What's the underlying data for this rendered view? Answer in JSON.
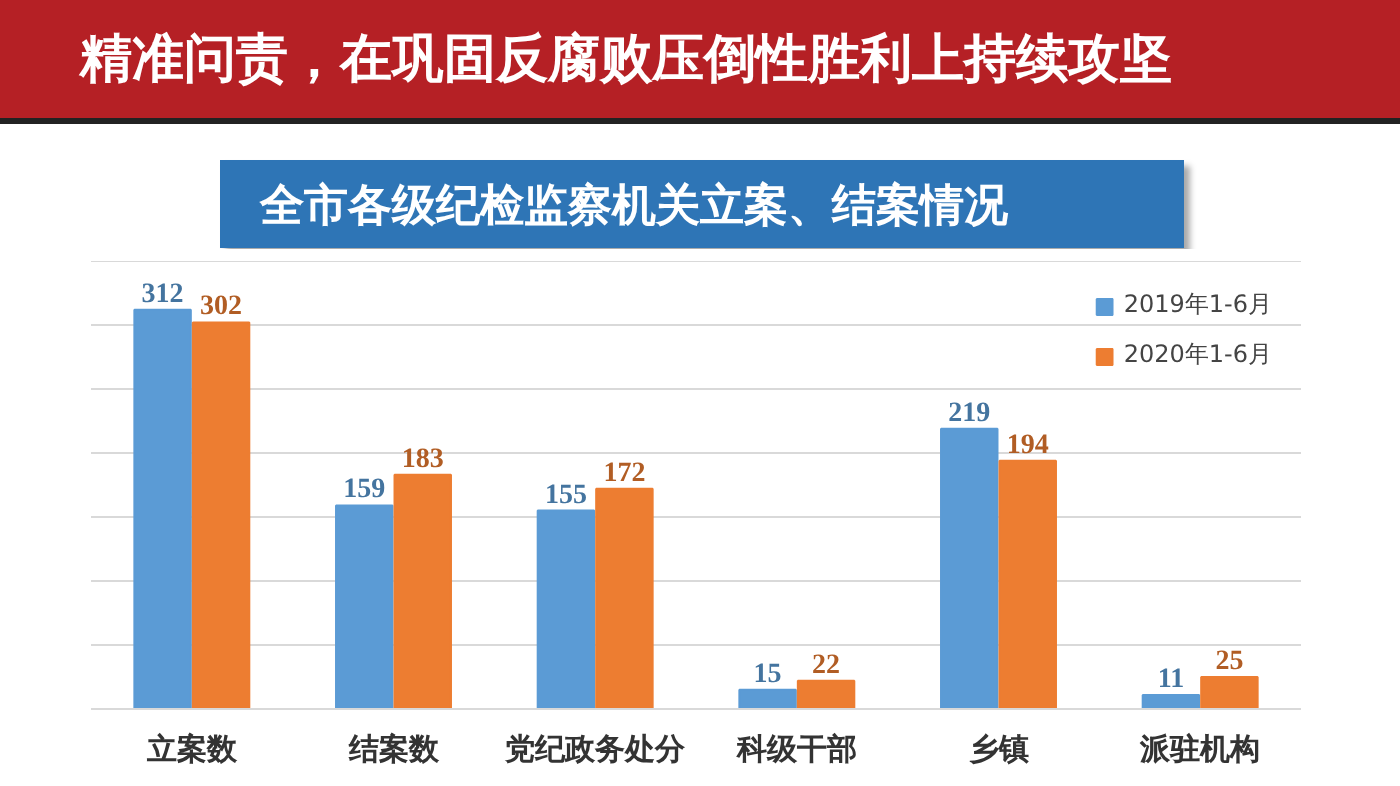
{
  "chart_data": {
    "type": "bar",
    "title": "精准问责，在巩固反腐败压倒性胜利上持续攻坚",
    "subtitle": "全市各级纪检监察机关立案、结案情况",
    "categories": [
      "立案数",
      "结案数",
      "党纪政务处分",
      "科级干部",
      "乡镇",
      "派驻机构"
    ],
    "series": [
      {
        "name": "2019年1-6月",
        "color": "#5b9bd5",
        "values": [
          312,
          159,
          155,
          15,
          219,
          11
        ]
      },
      {
        "name": "2020年1-6月",
        "color": "#ed7d31",
        "values": [
          302,
          183,
          172,
          22,
          194,
          25
        ]
      }
    ],
    "ylim": [
      0,
      350
    ],
    "yticks": [
      {
        "value": 0,
        "label": null
      },
      {
        "value": 50,
        "label": null
      },
      {
        "value": 100,
        "label": null
      },
      {
        "value": 150,
        "label": null
      },
      {
        "value": 200,
        "label": null
      },
      {
        "value": 250,
        "label": null
      },
      {
        "value": 300,
        "label": null
      },
      {
        "value": 350,
        "label": null
      }
    ],
    "grid": "y",
    "legend": "top right",
    "data_labels": true
  }
}
